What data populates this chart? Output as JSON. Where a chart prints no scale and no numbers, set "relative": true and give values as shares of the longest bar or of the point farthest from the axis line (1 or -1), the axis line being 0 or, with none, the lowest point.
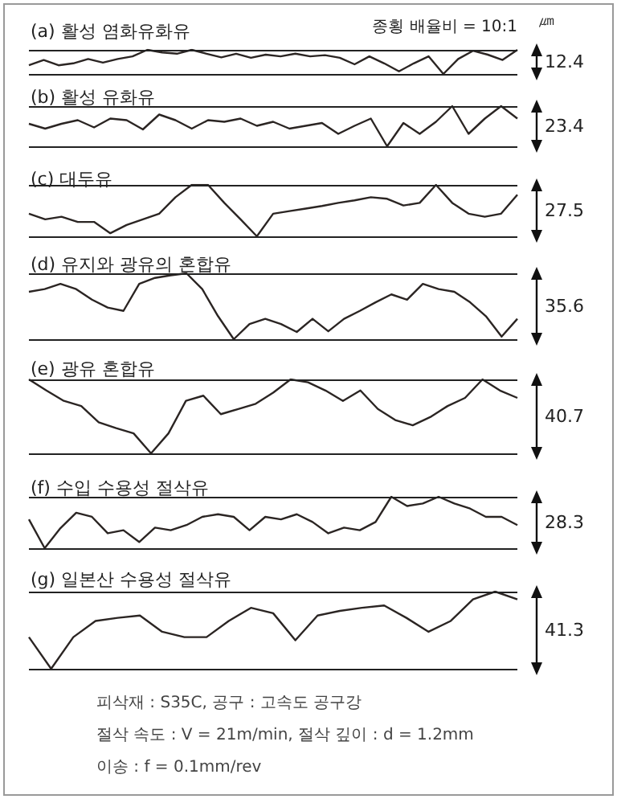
{
  "chart_data": [
    {
      "type": "line",
      "title": "(a) 활성 염화유화유",
      "relative": true,
      "marker": "none",
      "annotations": [
        "12.4",
        "㎛",
        "종횡 배율비 = 10:1"
      ],
      "ref_lines": [
        {
          "axis": "y",
          "value": 1,
          "color": "#222222"
        },
        {
          "axis": "y",
          "value": 0,
          "color": "#222222"
        }
      ],
      "categories": [
        null,
        null,
        null,
        null,
        null,
        null,
        null,
        null,
        null,
        null,
        null,
        null,
        null,
        null,
        null,
        null,
        null,
        null,
        null,
        null,
        null,
        null,
        null,
        null,
        null,
        null,
        null,
        null,
        null,
        null,
        null,
        null,
        null,
        null
      ],
      "series": [
        {
          "color": "#2b2523",
          "values": [
            0.36,
            0.58,
            0.36,
            0.44,
            0.62,
            0.47,
            0.62,
            0.73,
            1,
            0.89,
            0.84,
            1,
            0.84,
            0.69,
            0.84,
            0.67,
            0.8,
            0.73,
            0.84,
            0.73,
            0.78,
            0.67,
            0.4,
            0.73,
            0.44,
            0.11,
            0.44,
            0.73,
            0,
            0.62,
            0.96,
            0.8,
            0.58,
            1
          ]
        }
      ]
    },
    {
      "type": "line",
      "title": "(b) 활성 유화유",
      "relative": true,
      "marker": "none",
      "annotations": [
        "23.4"
      ],
      "ref_lines": [
        {
          "axis": "y",
          "value": 1,
          "color": "#222222"
        },
        {
          "axis": "y",
          "value": 0,
          "color": "#222222"
        }
      ],
      "categories": [
        null,
        null,
        null,
        null,
        null,
        null,
        null,
        null,
        null,
        null,
        null,
        null,
        null,
        null,
        null,
        null,
        null,
        null,
        null,
        null,
        null,
        null,
        null,
        null,
        null,
        null,
        null,
        null,
        null,
        null,
        null
      ],
      "series": [
        {
          "color": "#2b2523",
          "values": [
            0.56,
            0.44,
            0.56,
            0.65,
            0.47,
            0.69,
            0.65,
            0.42,
            0.79,
            0.65,
            0.44,
            0.65,
            0.61,
            0.69,
            0.51,
            0.61,
            0.44,
            0.51,
            0.58,
            0.31,
            0.51,
            0.69,
            0,
            0.58,
            0.31,
            0.61,
            1,
            0.31,
            0.69,
            1,
            0.69
          ]
        }
      ]
    },
    {
      "type": "line",
      "title": "(c) 대두유",
      "relative": true,
      "marker": "none",
      "annotations": [
        "27.5"
      ],
      "ref_lines": [
        {
          "axis": "y",
          "value": 1,
          "color": "#222222"
        },
        {
          "axis": "y",
          "value": 0,
          "color": "#222222"
        }
      ],
      "categories": [
        null,
        null,
        null,
        null,
        null,
        null,
        null,
        null,
        null,
        null,
        null,
        null,
        null,
        null,
        null,
        null,
        null,
        null,
        null,
        null,
        null,
        null,
        null,
        null,
        null,
        null,
        null,
        null,
        null,
        null,
        null
      ],
      "series": [
        {
          "color": "#2b2523",
          "values": [
            0.44,
            0.33,
            0.38,
            0.28,
            0.28,
            0.06,
            0.22,
            0.33,
            0.44,
            0.76,
            1,
            1,
            0.65,
            0.33,
            0,
            0.44,
            0.49,
            0.54,
            0.59,
            0.65,
            0.7,
            0.76,
            0.73,
            0.6,
            0.65,
            1,
            0.65,
            0.44,
            0.38,
            0.44,
            0.81
          ]
        }
      ]
    },
    {
      "type": "line",
      "title": "(d) 유지와 광유의 혼합유",
      "relative": true,
      "marker": "none",
      "annotations": [
        "35.6"
      ],
      "ref_lines": [
        {
          "axis": "y",
          "value": 1,
          "color": "#222222"
        },
        {
          "axis": "y",
          "value": 0,
          "color": "#222222"
        }
      ],
      "categories": [
        null,
        null,
        null,
        null,
        null,
        null,
        null,
        null,
        null,
        null,
        null,
        null,
        null,
        null,
        null,
        null,
        null,
        null,
        null,
        null,
        null,
        null,
        null,
        null,
        null,
        null,
        null,
        null,
        null,
        null,
        null,
        null
      ],
      "series": [
        {
          "color": "#2b2523",
          "values": [
            0.72,
            0.76,
            0.84,
            0.76,
            0.6,
            0.48,
            0.43,
            0.84,
            0.93,
            0.97,
            1,
            0.76,
            0.35,
            0,
            0.23,
            0.31,
            0.23,
            0.11,
            0.31,
            0.12,
            0.31,
            0.43,
            0.56,
            0.68,
            0.6,
            0.84,
            0.76,
            0.72,
            0.56,
            0.35,
            0.04,
            0.31
          ]
        }
      ]
    },
    {
      "type": "line",
      "title": "(e) 광유 혼합유",
      "relative": true,
      "marker": "none",
      "annotations": [
        "40.7"
      ],
      "ref_lines": [
        {
          "axis": "y",
          "value": 1,
          "color": "#222222"
        },
        {
          "axis": "y",
          "value": 0,
          "color": "#222222"
        }
      ],
      "categories": [
        null,
        null,
        null,
        null,
        null,
        null,
        null,
        null,
        null,
        null,
        null,
        null,
        null,
        null,
        null,
        null,
        null,
        null,
        null,
        null,
        null,
        null,
        null,
        null,
        null,
        null,
        null,
        null,
        null
      ],
      "series": [
        {
          "color": "#2b2523",
          "values": [
            1,
            0.85,
            0.71,
            0.64,
            0.42,
            0.34,
            0.27,
            0,
            0.27,
            0.71,
            0.78,
            0.53,
            0.6,
            0.67,
            0.82,
            1,
            0.96,
            0.85,
            0.71,
            0.85,
            0.6,
            0.45,
            0.38,
            0.49,
            0.64,
            0.75,
            1,
            0.85,
            0.75
          ]
        }
      ]
    },
    {
      "type": "line",
      "title": "(f) 수입 수용성 절삭유",
      "relative": true,
      "marker": "none",
      "annotations": [
        "28.3"
      ],
      "ref_lines": [
        {
          "axis": "y",
          "value": 1,
          "color": "#222222"
        },
        {
          "axis": "y",
          "value": 0,
          "color": "#222222"
        }
      ],
      "categories": [
        null,
        null,
        null,
        null,
        null,
        null,
        null,
        null,
        null,
        null,
        null,
        null,
        null,
        null,
        null,
        null,
        null,
        null,
        null,
        null,
        null,
        null,
        null,
        null,
        null,
        null,
        null,
        null,
        null,
        null,
        null,
        null
      ],
      "series": [
        {
          "color": "#2b2523",
          "values": [
            0.56,
            0,
            0.39,
            0.69,
            0.61,
            0.29,
            0.35,
            0.12,
            0.4,
            0.35,
            0.45,
            0.61,
            0.66,
            0.61,
            0.35,
            0.61,
            0.56,
            0.66,
            0.51,
            0.29,
            0.4,
            0.35,
            0.51,
            1,
            0.82,
            0.87,
            1,
            0.87,
            0.77,
            0.61,
            0.61,
            0.45
          ]
        }
      ]
    },
    {
      "type": "line",
      "title": "(g) 일본산 수용성 절삭유",
      "relative": true,
      "marker": "none",
      "annotations": [
        "41.3"
      ],
      "ref_lines": [
        {
          "axis": "y",
          "value": 1,
          "color": "#222222"
        },
        {
          "axis": "y",
          "value": 0,
          "color": "#222222"
        }
      ],
      "categories": [
        null,
        null,
        null,
        null,
        null,
        null,
        null,
        null,
        null,
        null,
        null,
        null,
        null,
        null,
        null,
        null,
        null,
        null,
        null,
        null,
        null,
        null,
        null
      ],
      "series": [
        {
          "color": "#2b2523",
          "values": [
            0.41,
            0,
            0.41,
            0.62,
            0.66,
            0.69,
            0.48,
            0.41,
            0.41,
            0.62,
            0.79,
            0.72,
            0.37,
            0.69,
            0.75,
            0.79,
            0.82,
            0.66,
            0.48,
            0.62,
            0.9,
            1,
            0.9
          ]
        }
      ]
    },
    {
      "type": "other",
      "annotations": [
        "피삭재 : S35C,  공구 : 고속도 공구강",
        "절삭 속도 : V = 21m/min,  절삭 깊이 : d = 1.2mm",
        "이송 : f = 0.1mm/rev"
      ]
    }
  ]
}
